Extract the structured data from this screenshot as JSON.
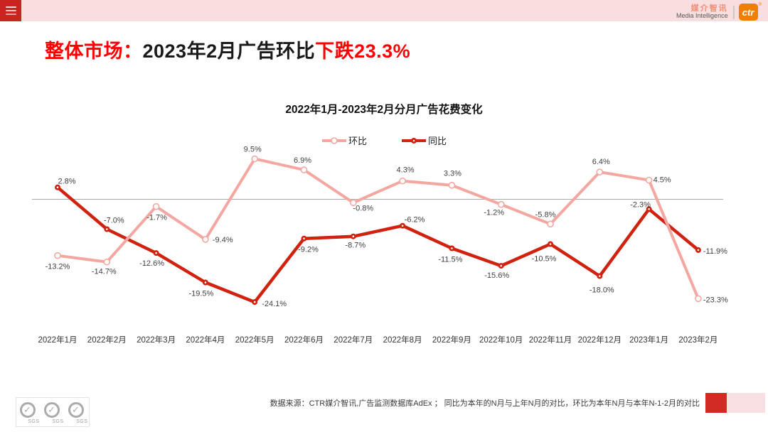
{
  "header": {
    "brand_cn": "媒介智讯",
    "brand_en": "Media Intelligence",
    "logo_text": "ctr",
    "reg_mark": "®",
    "menu_icon": "hamburger-icon"
  },
  "title": {
    "prefix": "整体市场：",
    "middle": "2023年2月广告环比",
    "highlight": "下跌23.3%"
  },
  "chart_data": {
    "type": "line",
    "title": "2022年1月-2023年2月分月广告花费变化",
    "categories": [
      "2022年1月",
      "2022年2月",
      "2022年3月",
      "2022年4月",
      "2022年5月",
      "2022年6月",
      "2022年7月",
      "2022年8月",
      "2022年9月",
      "2022年10月",
      "2022年11月",
      "2022年12月",
      "2023年1月",
      "2023年2月"
    ],
    "series": [
      {
        "name": "环比",
        "color": "#F4A7A0",
        "values": [
          -13.2,
          -14.7,
          -1.7,
          -9.4,
          9.5,
          6.9,
          -0.8,
          4.3,
          3.3,
          -1.2,
          -5.8,
          6.4,
          4.5,
          -23.3
        ]
      },
      {
        "name": "同比",
        "color": "#D0220F",
        "values": [
          2.8,
          -7.0,
          -12.6,
          -19.5,
          -24.1,
          -9.2,
          -8.7,
          -6.2,
          -11.5,
          -15.6,
          -10.5,
          -18.0,
          -2.3,
          -11.9
        ]
      }
    ],
    "unit": "%",
    "baseline": 0,
    "ylim": [
      -28,
      14
    ],
    "grid": "zero-line-only",
    "legend_position": "top-center",
    "data_labels": "all-points",
    "label_format": "one-decimal-percent"
  },
  "footer": {
    "source": "数据来源：CTR媒介智讯,广告监测数据库AdEx ； 同比为本年的N月与上年N月的对比，环比为本年N月与本年N-1-2月的对比",
    "sgs_label": "SGS"
  }
}
